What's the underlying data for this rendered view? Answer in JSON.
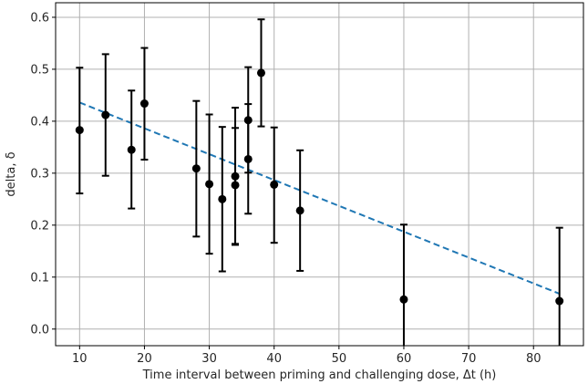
{
  "chart_data": {
    "type": "scatter",
    "xlabel": "Time interval between priming and challenging dose, Δt (h)",
    "ylabel": "delta, δ",
    "xlim": [
      6.3,
      87.7
    ],
    "ylim": [
      -0.032,
      0.628
    ],
    "xticks": [
      10,
      20,
      30,
      40,
      50,
      60,
      70,
      80
    ],
    "yticks": [
      0.0,
      0.1,
      0.2,
      0.3,
      0.4,
      0.5,
      0.6
    ],
    "ytick_labels": [
      "0.0",
      "0.1",
      "0.2",
      "0.3",
      "0.4",
      "0.5",
      "0.6"
    ],
    "grid": true,
    "points": [
      {
        "x": 10,
        "y": 0.383,
        "lo": 0.261,
        "hi": 0.503
      },
      {
        "x": 14,
        "y": 0.412,
        "lo": 0.295,
        "hi": 0.529
      },
      {
        "x": 18,
        "y": 0.345,
        "lo": 0.232,
        "hi": 0.459
      },
      {
        "x": 20,
        "y": 0.434,
        "lo": 0.326,
        "hi": 0.541
      },
      {
        "x": 28,
        "y": 0.309,
        "lo": 0.178,
        "hi": 0.439
      },
      {
        "x": 30,
        "y": 0.279,
        "lo": 0.145,
        "hi": 0.413
      },
      {
        "x": 32,
        "y": 0.25,
        "lo": 0.111,
        "hi": 0.389
      },
      {
        "x": 34,
        "y": 0.294,
        "lo": 0.164,
        "hi": 0.426
      },
      {
        "x": 34,
        "y": 0.277,
        "lo": 0.162,
        "hi": 0.387
      },
      {
        "x": 36,
        "y": 0.402,
        "lo": 0.301,
        "hi": 0.504
      },
      {
        "x": 36,
        "y": 0.327,
        "lo": 0.222,
        "hi": 0.433
      },
      {
        "x": 38,
        "y": 0.493,
        "lo": 0.39,
        "hi": 0.596
      },
      {
        "x": 40,
        "y": 0.278,
        "lo": 0.166,
        "hi": 0.388
      },
      {
        "x": 44,
        "y": 0.228,
        "lo": 0.112,
        "hi": 0.344
      },
      {
        "x": 60,
        "y": 0.057,
        "lo": -0.032,
        "hi": 0.201
      },
      {
        "x": 84,
        "y": 0.054,
        "lo": -0.032,
        "hi": 0.195
      }
    ],
    "fit_line": {
      "x": [
        10,
        84
      ],
      "y": [
        0.436,
        0.068
      ],
      "style": "dashed",
      "color": "#1f77b4"
    }
  }
}
